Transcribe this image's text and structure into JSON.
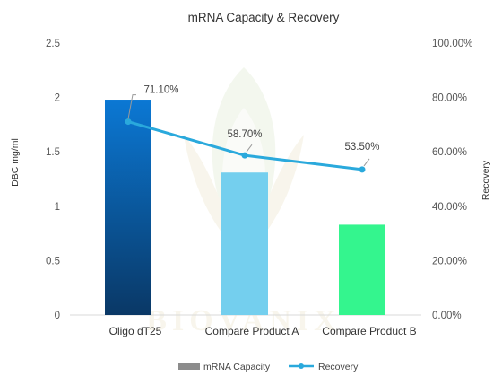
{
  "chart_data": {
    "type": "bar",
    "title": "mRNA Capacity & Recovery",
    "categories": [
      "Oligo dT25",
      "Compare Product A",
      "Compare Product B"
    ],
    "series": [
      {
        "name": "mRNA Capacity",
        "type": "bar",
        "axis": "left",
        "values": [
          1.98,
          1.31,
          0.83
        ],
        "colors": [
          "#0a66b8",
          "#74cfee",
          "#34f58e"
        ]
      },
      {
        "name": "Recovery",
        "type": "line",
        "axis": "right",
        "values": [
          71.1,
          58.7,
          53.5
        ],
        "value_labels": [
          "71.10%",
          "58.70%",
          "53.50%"
        ],
        "color": "#2aa9dc"
      }
    ],
    "y_left": {
      "label": "DBC mg/ml",
      "range": [
        0,
        2.5
      ],
      "ticks": [
        "0",
        "0.5",
        "1",
        "1.5",
        "2",
        "2.5"
      ]
    },
    "y_right": {
      "label": "Recovery",
      "range": [
        0,
        100
      ],
      "ticks": [
        "0.00%",
        "20.00%",
        "40.00%",
        "60.00%",
        "80.00%",
        "100.00%"
      ]
    },
    "grid": false,
    "legend_position": "bottom",
    "legend": [
      "mRNA Capacity",
      "Recovery"
    ],
    "legend_colors": [
      "#8c8c8c",
      "#2aa9dc"
    ]
  }
}
